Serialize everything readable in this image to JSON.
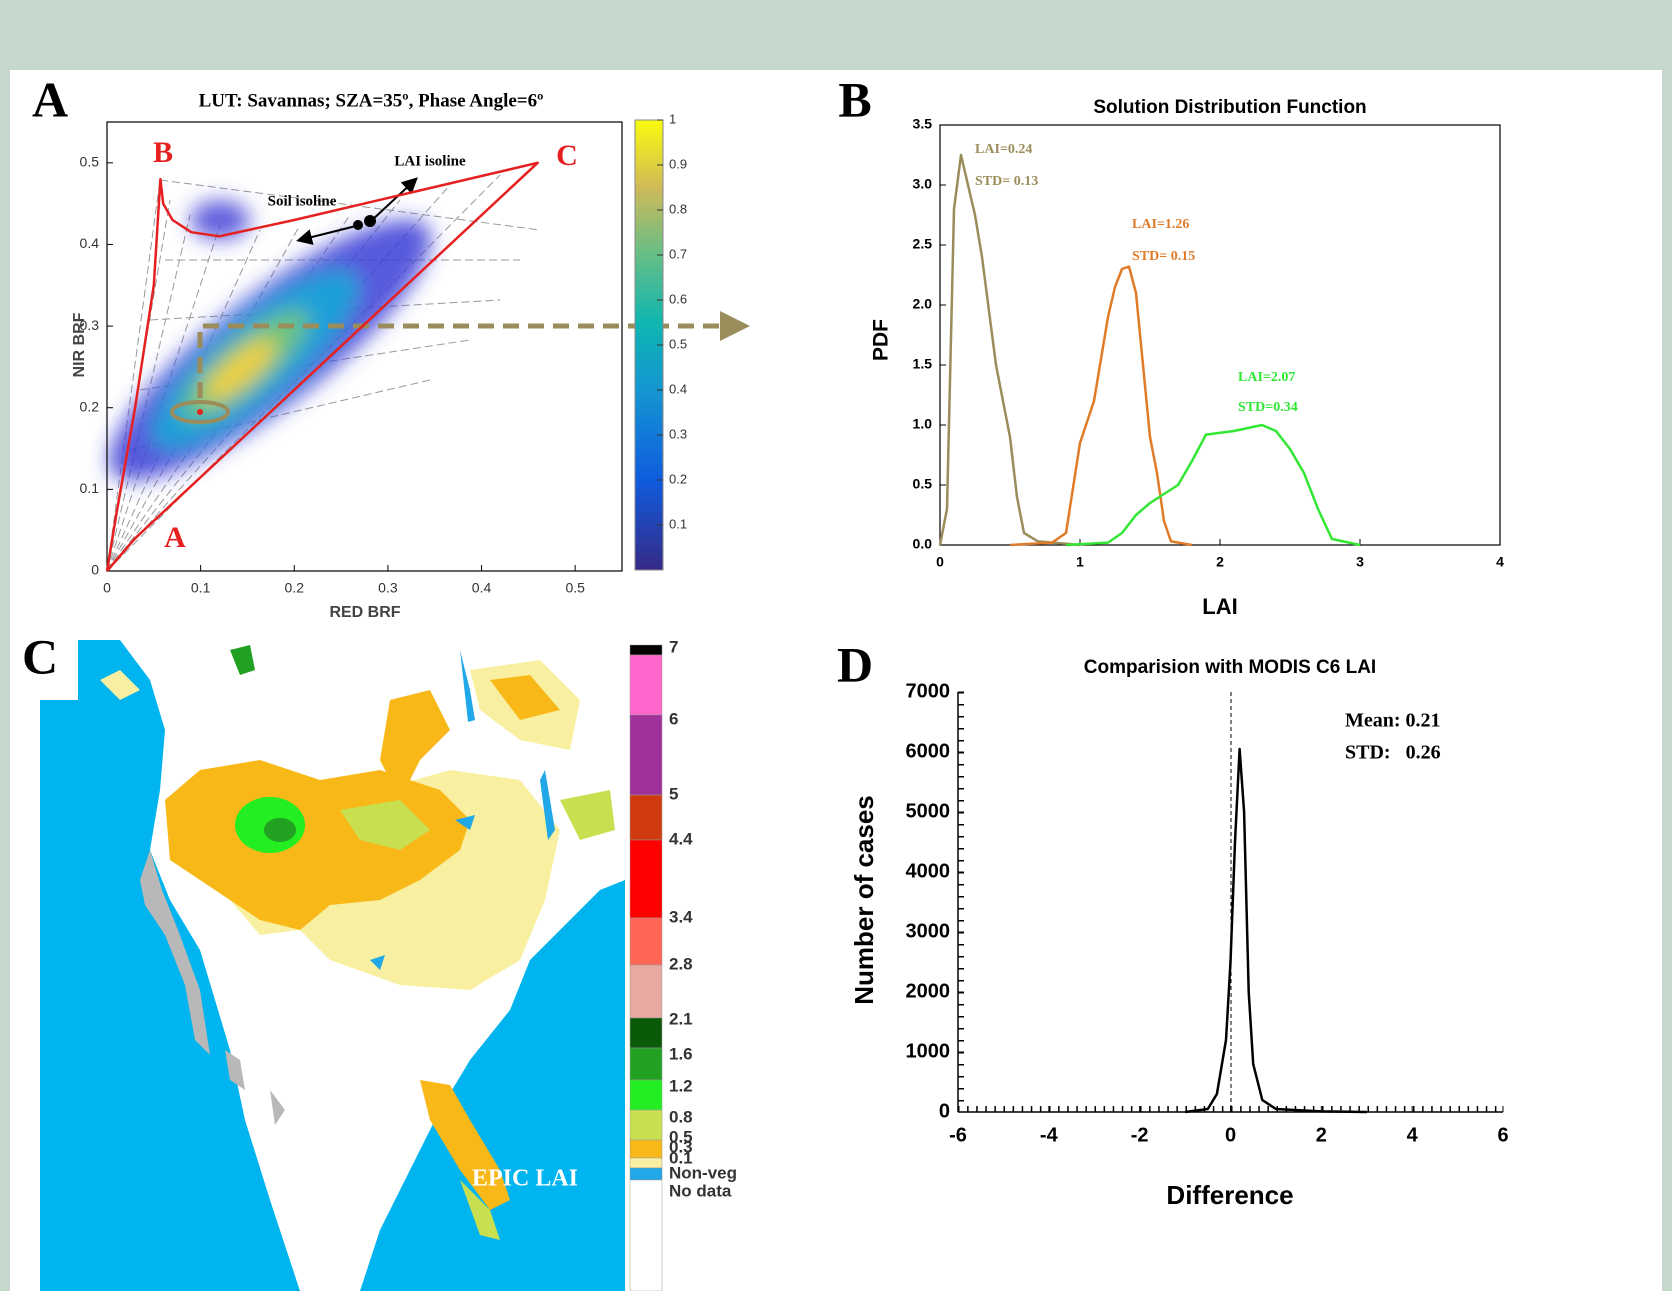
{
  "chart_data": [
    {
      "type": "scatter",
      "panel": "A",
      "title": "LUT: Savannas; SZA=35º, Phase Angle=6º",
      "x_label": "RED BRF",
      "y_label": "NIR BRF",
      "xlim": [
        0,
        0.55
      ],
      "ylim": [
        0,
        0.55
      ],
      "xticks": [
        0,
        0.1,
        0.2,
        0.3,
        0.4,
        0.5
      ],
      "yticks": [
        0,
        0.1,
        0.2,
        0.3,
        0.4,
        0.5
      ],
      "boundary": {
        "color": "#e62020",
        "x": [
          0,
          0.03,
          0.46,
          0.33,
          0.2,
          0.12,
          0.09,
          0.07,
          0.06,
          0.057,
          0.05,
          0.03,
          0.01,
          0
        ],
        "y": [
          0,
          0.04,
          0.5,
          0.465,
          0.43,
          0.41,
          0.415,
          0.43,
          0.45,
          0.48,
          0.35,
          0.2,
          0.07,
          0
        ]
      },
      "annotations": [
        "B",
        "C",
        "A",
        "LAI isoline",
        "Soil isoline"
      ],
      "colorbar": {
        "lim": [
          0,
          1
        ],
        "ticks": [
          0.1,
          0.2,
          0.3,
          0.4,
          0.5,
          0.6,
          0.7,
          0.8,
          0.9,
          1
        ]
      }
    },
    {
      "type": "line",
      "panel": "B",
      "title": "Solution Distribution Function",
      "x_label": "LAI",
      "y_label": "PDF",
      "xlim": [
        0,
        4
      ],
      "ylim": [
        0,
        3.5
      ],
      "xticks": [
        0,
        1,
        2,
        3,
        4
      ],
      "yticks": [
        {
          "value": 0,
          "label": "0.0"
        },
        0.5,
        {
          "value": 1,
          "label": "1.0"
        },
        1.5,
        {
          "value": 2,
          "label": "2.0"
        },
        2.5,
        {
          "value": 3,
          "label": "3.0"
        },
        3.5
      ],
      "series": [
        {
          "color": "#9b8d5b",
          "x": [
            0,
            0.05,
            0.1,
            0.15,
            0.2,
            0.25,
            0.3,
            0.4,
            0.5,
            0.55,
            0.6,
            0.7,
            0.9,
            1.0
          ],
          "values": [
            0,
            0.3,
            2.8,
            3.25,
            3.0,
            2.75,
            2.4,
            1.5,
            0.9,
            0.4,
            0.1,
            0.03,
            0.01,
            0
          ]
        },
        {
          "color": "#e07b28",
          "x": [
            0.5,
            0.8,
            0.9,
            1.0,
            1.1,
            1.2,
            1.25,
            1.3,
            1.35,
            1.4,
            1.45,
            1.5,
            1.55,
            1.6,
            1.65,
            1.8
          ],
          "values": [
            0,
            0.02,
            0.1,
            0.85,
            1.2,
            1.9,
            2.15,
            2.3,
            2.32,
            2.1,
            1.5,
            0.9,
            0.6,
            0.2,
            0.03,
            0
          ]
        },
        {
          "color": "#33e633",
          "x": [
            0.9,
            1.2,
            1.3,
            1.4,
            1.5,
            1.7,
            1.8,
            1.9,
            2.1,
            2.3,
            2.4,
            2.5,
            2.6,
            2.7,
            2.8,
            3.0
          ],
          "values": [
            0,
            0.02,
            0.1,
            0.25,
            0.35,
            0.5,
            0.7,
            0.92,
            0.95,
            1.0,
            0.95,
            0.8,
            0.6,
            0.3,
            0.05,
            0
          ]
        }
      ],
      "annotations": [
        "LAI=0.24",
        "STD= 0.13",
        "LAI=1.26",
        "STD= 0.15",
        "LAI=2.07",
        "STD=0.34"
      ]
    },
    {
      "type": "line",
      "panel": "D",
      "title": "Comparision with  MODIS C6 LAI",
      "x_label": "Difference",
      "y_label": "Number of cases",
      "xlim": [
        -6,
        6
      ],
      "ylim": [
        0,
        7000
      ],
      "xticks": [
        -6,
        -4,
        -2,
        0,
        2,
        4,
        6
      ],
      "yticks": [
        0,
        1000,
        2000,
        3000,
        4000,
        5000,
        6000,
        7000
      ],
      "series": [
        {
          "color": "#000000",
          "x": [
            -1,
            -0.5,
            -0.3,
            -0.1,
            0,
            0.1,
            0.2,
            0.3,
            0.4,
            0.5,
            0.7,
            1,
            2,
            3
          ],
          "values": [
            0,
            50,
            300,
            1200,
            2500,
            4500,
            6050,
            5000,
            2000,
            800,
            200,
            50,
            10,
            0
          ]
        }
      ],
      "annotations": [
        "Mean: 0.21",
        "STD:   0.26"
      ]
    }
  ],
  "map": {
    "panel": "C",
    "title": "EPIC LAI",
    "legend_labels": [
      "7",
      "6",
      "5",
      "4.4",
      "3.4",
      "2.8",
      "2.1",
      "1.6",
      "1.2",
      "0.8",
      "0.5",
      "0.3",
      "0.1",
      "Non-veg",
      "No data"
    ],
    "legend_colors": [
      "#000000",
      "#ff66cc",
      "#a0309a",
      "#d03a10",
      "#ff0000",
      "#ff6655",
      "#e8aaa0",
      "#0a5a0a",
      "#22a022",
      "#22ee22",
      "#c8e050",
      "#f8b818",
      "#f8f0a0",
      "#20a8e8",
      "#ffffff"
    ]
  }
}
